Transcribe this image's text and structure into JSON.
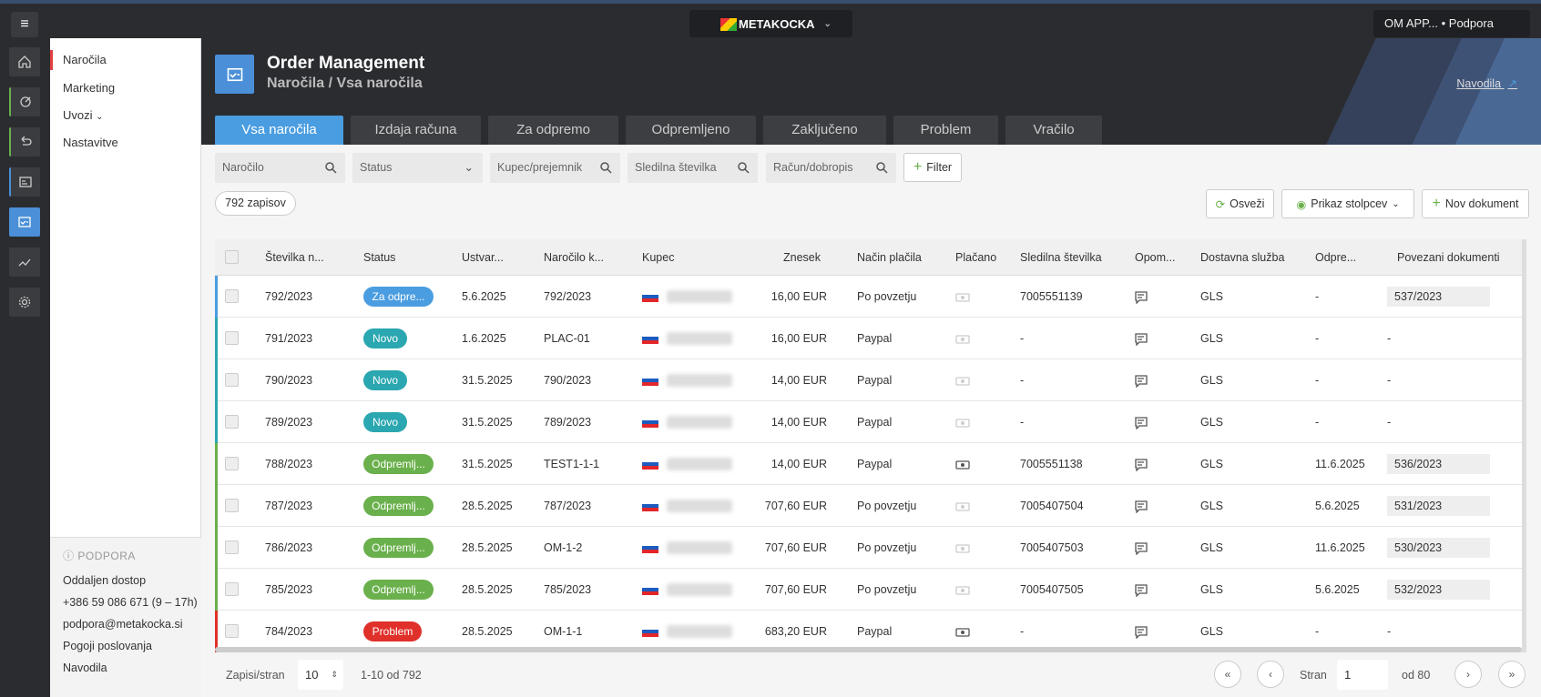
{
  "topbar": {
    "brand": "METAKOCKA",
    "account": "OM APP... • Podpora"
  },
  "nav": {
    "items": [
      "Naročila",
      "Marketing",
      "Uvozi",
      "Nastavitve"
    ]
  },
  "support": {
    "heading": "PODPORA",
    "lines": [
      "Oddaljen dostop",
      "+386 59 086 671 (9 – 17h)",
      "podpora@metakocka.si",
      "Pogoji poslovanja",
      "Navodila"
    ]
  },
  "header": {
    "title": "Order Management",
    "subtitle": "Naročila / Vsa naročila",
    "help": "Navodila"
  },
  "tabs": [
    "Vsa naročila",
    "Izdaja računa",
    "Za odpremo",
    "Odpremljeno",
    "Zaključeno",
    "Problem",
    "Vračilo"
  ],
  "filters": {
    "order": "Naročilo",
    "status": "Status",
    "customer": "Kupec/prejemnik",
    "tracking": "Sledilna številka",
    "invoice": "Račun/dobropis",
    "filter_btn": "Filter"
  },
  "record_count": "792 zapisov",
  "actions": {
    "refresh": "Osveži",
    "columns": "Prikaz stolpcev",
    "new_doc": "Nov dokument"
  },
  "columns": [
    "Številka n...",
    "Status",
    "Ustvar...",
    "Naročilo k...",
    "Kupec",
    "Znesek",
    "Način plačila",
    "Plačano",
    "Sledilna številka",
    "Opom...",
    "Dostavna služba",
    "Odpre...",
    "Povezani dokumenti"
  ],
  "rows": [
    {
      "num": "792/2023",
      "status": "Za odpre...",
      "created": "5.6.2025",
      "order": "792/2023",
      "amount": "16,00 EUR",
      "payment": "Po povzetju",
      "tracking": "7005551139",
      "delivery": "GLS",
      "shipped": "-",
      "docs": "537/2023"
    },
    {
      "num": "791/2023",
      "status": "Novo",
      "created": "1.6.2025",
      "order": "PLAC-01",
      "amount": "16,00 EUR",
      "payment": "Paypal",
      "tracking": "-",
      "delivery": "GLS",
      "shipped": "-",
      "docs": "-"
    },
    {
      "num": "790/2023",
      "status": "Novo",
      "created": "31.5.2025",
      "order": "790/2023",
      "amount": "14,00 EUR",
      "payment": "Paypal",
      "tracking": "-",
      "delivery": "GLS",
      "shipped": "-",
      "docs": "-"
    },
    {
      "num": "789/2023",
      "status": "Novo",
      "created": "31.5.2025",
      "order": "789/2023",
      "amount": "14,00 EUR",
      "payment": "Paypal",
      "tracking": "-",
      "delivery": "GLS",
      "shipped": "-",
      "docs": "-"
    },
    {
      "num": "788/2023",
      "status": "Odpremlj...",
      "created": "31.5.2025",
      "order": "TEST1-1-1",
      "amount": "14,00 EUR",
      "payment": "Paypal",
      "tracking": "7005551138",
      "delivery": "GLS",
      "shipped": "11.6.2025",
      "docs": "536/2023"
    },
    {
      "num": "787/2023",
      "status": "Odpremlj...",
      "created": "28.5.2025",
      "order": "787/2023",
      "amount": "707,60 EUR",
      "payment": "Po povzetju",
      "tracking": "7005407504",
      "delivery": "GLS",
      "shipped": "5.6.2025",
      "docs": "531/2023"
    },
    {
      "num": "786/2023",
      "status": "Odpremlj...",
      "created": "28.5.2025",
      "order": "OM-1-2",
      "amount": "707,60 EUR",
      "payment": "Po povzetju",
      "tracking": "7005407503",
      "delivery": "GLS",
      "shipped": "11.6.2025",
      "docs": "530/2023"
    },
    {
      "num": "785/2023",
      "status": "Odpremlj...",
      "created": "28.5.2025",
      "order": "785/2023",
      "amount": "707,60 EUR",
      "payment": "Po povzetju",
      "tracking": "7005407505",
      "delivery": "GLS",
      "shipped": "5.6.2025",
      "docs": "532/2023"
    },
    {
      "num": "784/2023",
      "status": "Problem",
      "created": "28.5.2025",
      "order": "OM-1-1",
      "amount": "683,20 EUR",
      "payment": "Paypal",
      "tracking": "-",
      "delivery": "GLS",
      "shipped": "-",
      "docs": "-"
    }
  ],
  "colors": {
    "Za odpre...": "#4a9de0",
    "Novo": "#2aa7b0",
    "Odpremlj...": "#6ab04c",
    "Problem": "#e0302a"
  },
  "pagination": {
    "per_page_label": "Zapisi/stran",
    "per_page": "10",
    "range": "1-10 od 792",
    "page_label": "Stran",
    "page": "1",
    "of": "od 80"
  }
}
